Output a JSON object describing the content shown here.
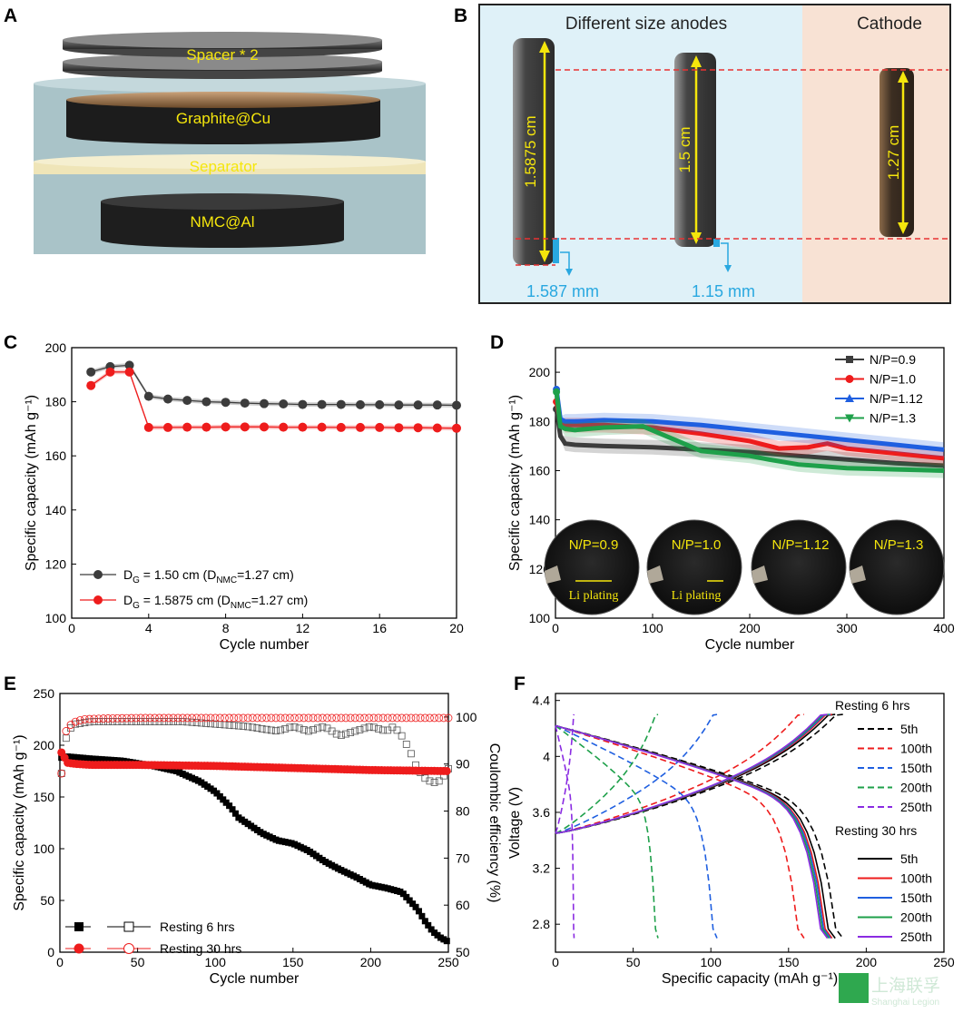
{
  "panels": {
    "A": {
      "label": "A",
      "layers": [
        "Spacer * 2",
        "Graphite@Cu",
        "Separator",
        "NMC@Al"
      ]
    },
    "B": {
      "label": "B",
      "title_left": "Different size anodes",
      "title_right": "Cathode",
      "anode1_dia": "1.5875 cm",
      "anode2_dia": "1.5 cm",
      "cathode_dia": "1.27 cm",
      "overhang1": "1.587 mm",
      "overhang2": "1.15 mm"
    },
    "C": {
      "label": "C"
    },
    "D": {
      "label": "D",
      "photos": [
        "N/P=0.9",
        "N/P=1.0",
        "N/P=1.12",
        "N/P=1.3"
      ],
      "plating": "Li plating"
    },
    "E": {
      "label": "E"
    },
    "F": {
      "label": "F",
      "legend_title_1": "Resting 6 hrs",
      "legend_title_2": "Resting 30 hrs"
    }
  },
  "watermark": {
    "text": "上海联孚",
    "sub": "Shanghai Legion"
  },
  "colors": {
    "black": "#000000",
    "red": "#ee1c1c",
    "blue": "#1f5fe0",
    "green": "#1ea04a",
    "purple": "#8a2be2",
    "gray": "#3c3c3c"
  },
  "chart_data": [
    {
      "id": "C",
      "type": "line",
      "xlabel": "Cycle number",
      "ylabel": "Specific capacity (mAh g⁻¹)",
      "xlim": [
        0,
        20
      ],
      "ylim": [
        100,
        200
      ],
      "xticks": [
        0,
        4,
        8,
        12,
        16,
        20
      ],
      "yticks": [
        100,
        120,
        140,
        160,
        180,
        200
      ],
      "series": [
        {
          "name": "D_G = 1.50 cm (D_NMC=1.27 cm)",
          "color": "#3c3c3c",
          "x": [
            1,
            2,
            3,
            4,
            5,
            6,
            7,
            8,
            9,
            10,
            11,
            12,
            13,
            14,
            15,
            16,
            17,
            18,
            19,
            20
          ],
          "y": [
            191,
            193,
            193.5,
            182,
            181,
            180.5,
            180,
            179.8,
            179.5,
            179.3,
            179.2,
            179,
            179,
            179,
            178.9,
            178.9,
            178.8,
            178.8,
            178.8,
            178.7
          ]
        },
        {
          "name": "D_G = 1.5875 cm (D_NMC=1.27 cm)",
          "color": "#ee1c1c",
          "x": [
            1,
            2,
            3,
            4,
            5,
            6,
            7,
            8,
            9,
            10,
            11,
            12,
            13,
            14,
            15,
            16,
            17,
            18,
            19,
            20
          ],
          "y": [
            186,
            191,
            191,
            170.5,
            170.5,
            170.6,
            170.6,
            170.7,
            170.7,
            170.7,
            170.6,
            170.6,
            170.6,
            170.5,
            170.5,
            170.5,
            170.4,
            170.4,
            170.3,
            170.2
          ]
        }
      ]
    },
    {
      "id": "D",
      "type": "line",
      "xlabel": "Cycle number",
      "ylabel": "Specific capacity (mAh g⁻¹)",
      "xlim": [
        0,
        400
      ],
      "ylim": [
        100,
        210
      ],
      "xticks": [
        0,
        100,
        200,
        300,
        400
      ],
      "yticks": [
        100,
        120,
        140,
        160,
        180,
        200
      ],
      "series": [
        {
          "name": "N/P=0.9",
          "color": "#3c3c3c",
          "x": [
            1,
            5,
            10,
            20,
            50,
            100,
            150,
            200,
            250,
            300,
            350,
            400
          ],
          "y": [
            185,
            174,
            171,
            170.5,
            170,
            169.5,
            168.5,
            167.5,
            166,
            164.5,
            163,
            162
          ]
        },
        {
          "name": "N/P=1.0",
          "color": "#ee1c1c",
          "x": [
            1,
            5,
            10,
            20,
            50,
            100,
            150,
            200,
            230,
            260,
            280,
            300,
            350,
            400
          ],
          "y": [
            188,
            180,
            178.5,
            178.5,
            178.5,
            177.5,
            175,
            172,
            169,
            169.5,
            171,
            169,
            167,
            165
          ]
        },
        {
          "name": "N/P=1.12",
          "color": "#1f5fe0",
          "x": [
            1,
            5,
            10,
            20,
            50,
            100,
            150,
            200,
            250,
            300,
            350,
            400
          ],
          "y": [
            193,
            181,
            180,
            180,
            180.5,
            180,
            178.5,
            176.5,
            174.5,
            172.5,
            170.5,
            168.5
          ]
        },
        {
          "name": "N/P=1.3",
          "color": "#1ea04a",
          "x": [
            1,
            5,
            10,
            20,
            50,
            90,
            120,
            150,
            200,
            220,
            250,
            300,
            350,
            400
          ],
          "y": [
            192,
            178,
            177,
            176.5,
            177.5,
            178,
            173,
            168,
            166,
            164.5,
            162.5,
            161,
            160.5,
            160
          ]
        }
      ]
    },
    {
      "id": "E",
      "type": "scatter",
      "xlabel": "Cycle number",
      "ylabel": "Specific capacity (mAh g⁻¹)",
      "y2label": "Coulombic efficiency (%)",
      "xlim": [
        0,
        250
      ],
      "ylim": [
        0,
        250
      ],
      "y2lim": [
        50,
        105
      ],
      "xticks": [
        0,
        50,
        100,
        150,
        200,
        250
      ],
      "yticks": [
        0,
        50,
        100,
        150,
        200,
        250
      ],
      "y2ticks": [
        50,
        60,
        70,
        80,
        90,
        100
      ],
      "series": [
        {
          "name": "Resting 6 hrs",
          "axis": "left",
          "color": "#000000",
          "filled": true,
          "x": [
            1,
            5,
            20,
            40,
            60,
            75,
            90,
            100,
            110,
            115,
            120,
            130,
            140,
            150,
            160,
            170,
            180,
            190,
            200,
            210,
            220,
            225,
            230,
            235,
            240,
            245,
            250
          ],
          "y": [
            188,
            189,
            187,
            185,
            180,
            175,
            165,
            155,
            140,
            130,
            125,
            115,
            108,
            105,
            98,
            88,
            80,
            73,
            65,
            62,
            58,
            50,
            42,
            30,
            20,
            14,
            10
          ]
        },
        {
          "name": "Resting 6 hrs",
          "axis": "right",
          "color": "#000000",
          "filled": false,
          "x": [
            1,
            3,
            5,
            8,
            10,
            20,
            40,
            60,
            80,
            100,
            120,
            130,
            140,
            150,
            160,
            170,
            180,
            190,
            200,
            210,
            215,
            220,
            225,
            230,
            235,
            240,
            245,
            250
          ],
          "y": [
            88,
            94,
            97,
            98,
            98.5,
            99,
            99,
            99,
            99,
            98.5,
            98,
            97.5,
            97,
            98,
            97,
            98,
            96,
            97,
            98,
            97,
            98,
            96,
            93,
            89,
            87,
            86,
            86.5,
            89
          ]
        },
        {
          "name": "Resting 30 hrs",
          "axis": "left",
          "color": "#ee1c1c",
          "filled": true,
          "x": [
            1,
            5,
            10,
            20,
            30,
            50,
            100,
            150,
            200,
            250
          ],
          "y": [
            193,
            183,
            182,
            181,
            181,
            181,
            180,
            178,
            176,
            175
          ]
        },
        {
          "name": "Resting 30 hrs",
          "axis": "right",
          "color": "#ee1c1c",
          "filled": false,
          "x": [
            1,
            2,
            3,
            5,
            8,
            10,
            15,
            20,
            30,
            50,
            100,
            150,
            200,
            250
          ],
          "y": [
            88,
            94,
            96,
            98,
            98.5,
            99,
            99.5,
            99.6,
            99.7,
            99.8,
            99.8,
            99.8,
            99.8,
            99.8
          ]
        }
      ]
    },
    {
      "id": "F",
      "type": "line",
      "xlabel": "Specific capacity (mAh g⁻¹)",
      "ylabel": "Voltage (V)",
      "xlim": [
        0,
        250
      ],
      "ylim": [
        2.6,
        4.45
      ],
      "xticks": [
        0,
        50,
        100,
        150,
        200,
        250
      ],
      "yticks": [
        2.8,
        3.2,
        3.6,
        4.0,
        4.4
      ],
      "series": [
        {
          "name": "5th",
          "group": "Resting 6 hrs",
          "color": "#000000",
          "dash": true,
          "cap": 185
        },
        {
          "name": "100th",
          "group": "Resting 6 hrs",
          "color": "#ee1c1c",
          "dash": true,
          "cap": 160
        },
        {
          "name": "150th",
          "group": "Resting 6 hrs",
          "color": "#1f5fe0",
          "dash": true,
          "cap": 104
        },
        {
          "name": "200th",
          "group": "Resting 6 hrs",
          "color": "#1ea04a",
          "dash": true,
          "cap": 66
        },
        {
          "name": "250th",
          "group": "Resting 6 hrs",
          "color": "#8a2be2",
          "dash": true,
          "cap": 12
        },
        {
          "name": "5th",
          "group": "Resting 30 hrs",
          "color": "#000000",
          "dash": false,
          "cap": 180
        },
        {
          "name": "100th",
          "group": "Resting 30 hrs",
          "color": "#ee1c1c",
          "dash": false,
          "cap": 178
        },
        {
          "name": "150th",
          "group": "Resting 30 hrs",
          "color": "#1f5fe0",
          "dash": false,
          "cap": 177
        },
        {
          "name": "200th",
          "group": "Resting 30 hrs",
          "color": "#1ea04a",
          "dash": false,
          "cap": 176
        },
        {
          "name": "250th",
          "group": "Resting 30 hrs",
          "color": "#8a2be2",
          "dash": false,
          "cap": 175
        }
      ]
    }
  ]
}
